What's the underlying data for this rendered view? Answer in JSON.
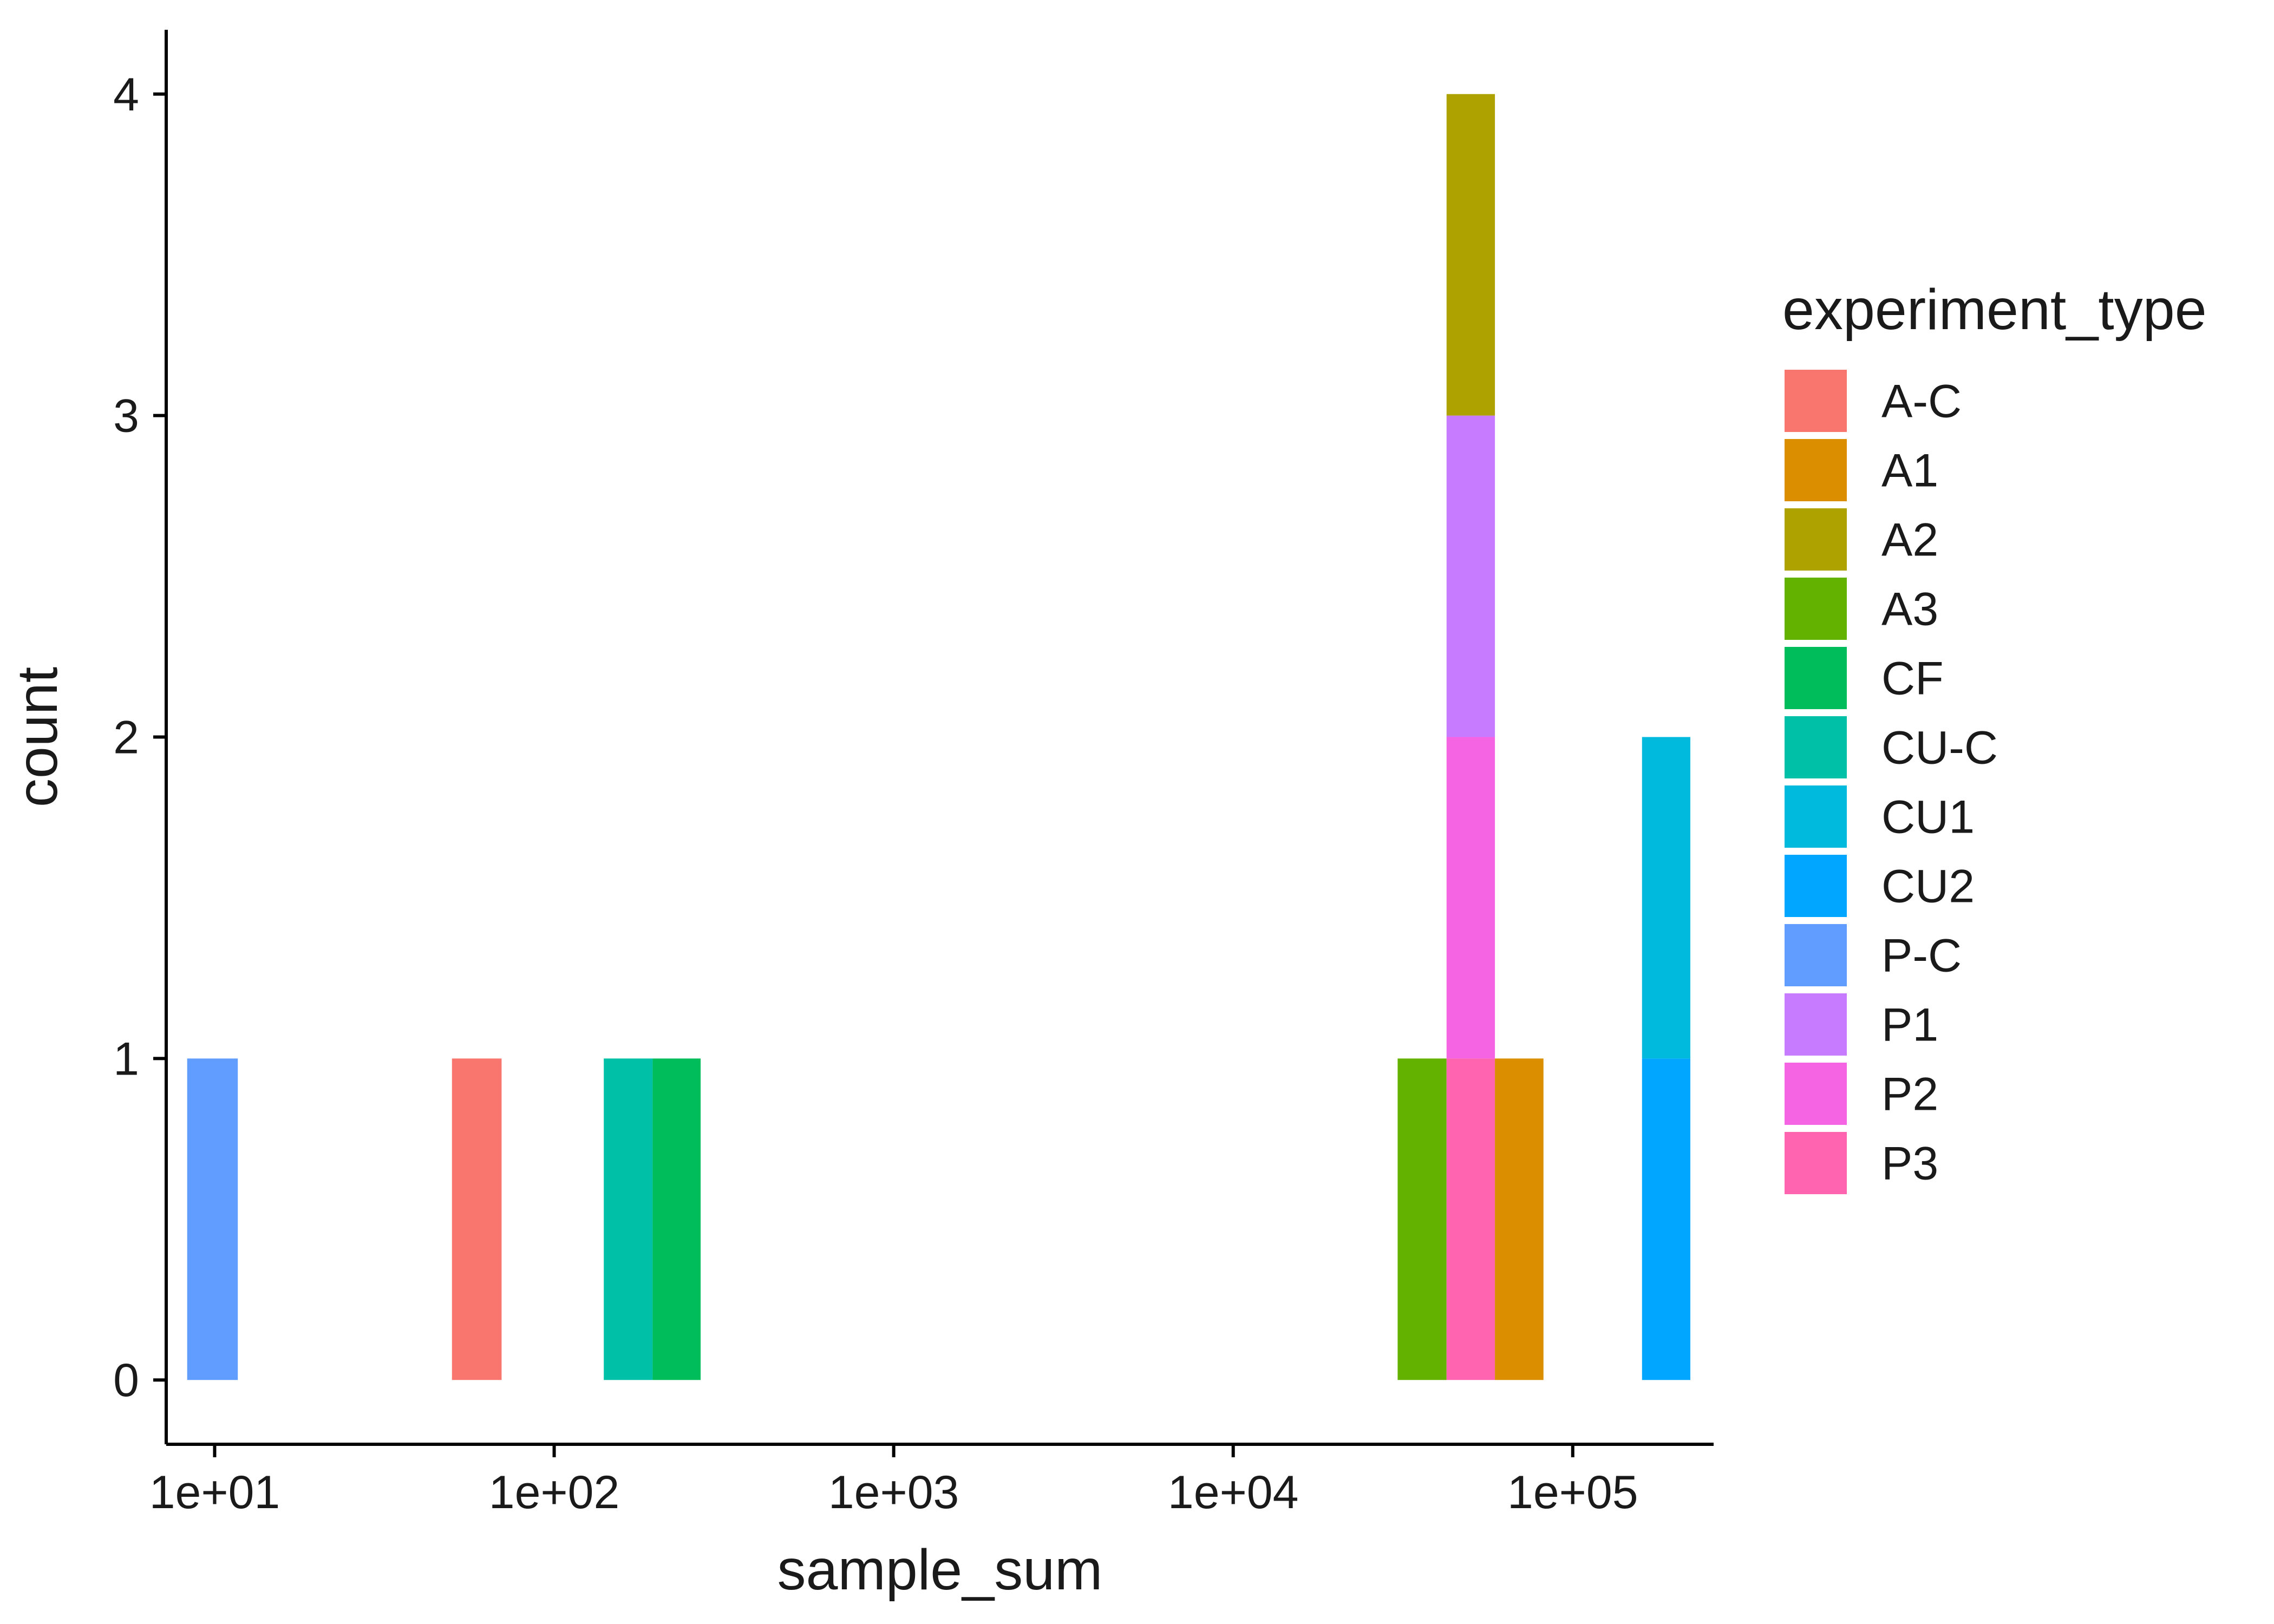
{
  "chart_data": {
    "type": "bar",
    "subtype": "stacked-histogram",
    "xlabel": "sample_sum",
    "ylabel": "count",
    "x_scale": "log10",
    "x_ticks": [
      10,
      100,
      1000,
      10000,
      100000
    ],
    "x_tick_labels": [
      "1e+01",
      "1e+02",
      "1e+03",
      "1e+04",
      "1e+05"
    ],
    "xlim": [
      7.2,
      260000
    ],
    "y_ticks": [
      0,
      1,
      2,
      3,
      4
    ],
    "y_tick_labels": [
      "0",
      "1",
      "2",
      "3",
      "4"
    ],
    "ylim": [
      -0.2,
      4.2
    ],
    "grid": false,
    "legend": {
      "title": "experiment_type",
      "placement": "right",
      "entries": [
        {
          "name": "A-C",
          "color": "#F8766D"
        },
        {
          "name": "A1",
          "color": "#DB8E00"
        },
        {
          "name": "A2",
          "color": "#AEA200"
        },
        {
          "name": "A3",
          "color": "#64B200"
        },
        {
          "name": "CF",
          "color": "#00BD5C"
        },
        {
          "name": "CU-C",
          "color": "#00C1A7"
        },
        {
          "name": "CU1",
          "color": "#00BADE"
        },
        {
          "name": "CU2",
          "color": "#00A6FF"
        },
        {
          "name": "P-C",
          "color": "#619CFF"
        },
        {
          "name": "P1",
          "color": "#C77CFF"
        },
        {
          "name": "P2",
          "color": "#F564E3"
        },
        {
          "name": "P3",
          "color": "#FF64B0"
        }
      ]
    },
    "bins": [
      {
        "x_min": 8.3,
        "x_max": 11.7,
        "stack": [
          {
            "series": "P-C",
            "count": 1
          }
        ]
      },
      {
        "x_min": 50,
        "x_max": 70,
        "stack": [
          {
            "series": "A-C",
            "count": 1
          }
        ]
      },
      {
        "x_min": 140,
        "x_max": 195,
        "stack": [
          {
            "series": "CU-C",
            "count": 1
          }
        ]
      },
      {
        "x_min": 195,
        "x_max": 270,
        "stack": [
          {
            "series": "CF",
            "count": 1
          }
        ]
      },
      {
        "x_min": 30500,
        "x_max": 42500,
        "stack": [
          {
            "series": "A3",
            "count": 1
          }
        ]
      },
      {
        "x_min": 42500,
        "x_max": 59000,
        "stack": [
          {
            "series": "P3",
            "count": 1
          },
          {
            "series": "P2",
            "count": 1
          },
          {
            "series": "P1",
            "count": 1
          },
          {
            "series": "A2",
            "count": 1
          }
        ]
      },
      {
        "x_min": 59000,
        "x_max": 82000,
        "stack": [
          {
            "series": "A1",
            "count": 1
          }
        ]
      },
      {
        "x_min": 160000,
        "x_max": 222000,
        "stack": [
          {
            "series": "CU2",
            "count": 1
          },
          {
            "series": "CU1",
            "count": 1
          }
        ]
      }
    ]
  }
}
